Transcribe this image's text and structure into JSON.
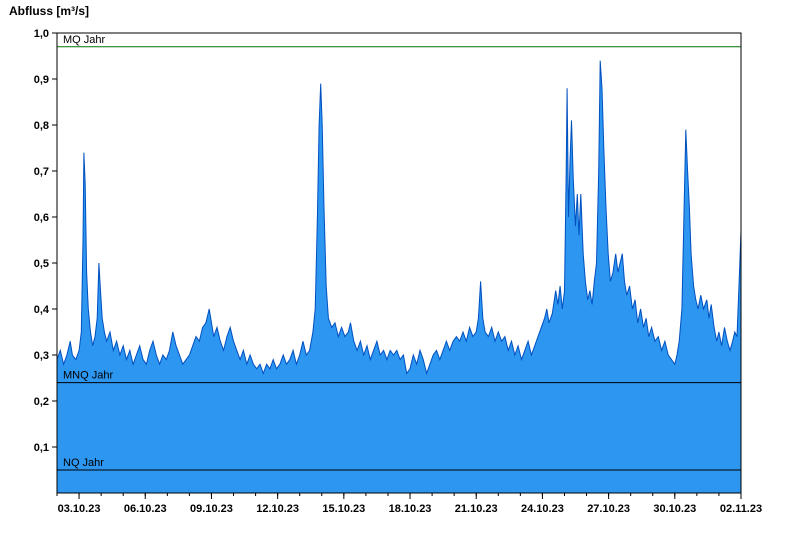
{
  "chart_data": {
    "type": "area",
    "title": "Abfluss [m³/s]",
    "ylabel": "Abfluss [m³/s]",
    "xlabel": "",
    "ylim": [
      0,
      1.0
    ],
    "xlim": [
      0,
      31
    ],
    "grid": false,
    "legend": "none",
    "colors": {
      "fill": "#2D96F0",
      "stroke": "#0050C0",
      "axis": "#000000"
    },
    "y_ticks": [
      {
        "value": 0.1,
        "label": "0,1"
      },
      {
        "value": 0.2,
        "label": "0,2"
      },
      {
        "value": 0.3,
        "label": "0,3"
      },
      {
        "value": 0.4,
        "label": "0,4"
      },
      {
        "value": 0.5,
        "label": "0,5"
      },
      {
        "value": 0.6,
        "label": "0,6"
      },
      {
        "value": 0.7,
        "label": "0,7"
      },
      {
        "value": 0.8,
        "label": "0,8"
      },
      {
        "value": 0.9,
        "label": "0,9"
      },
      {
        "value": 1.0,
        "label": "1,0"
      }
    ],
    "x_ticks": [
      {
        "day": 1,
        "label": "03.10.23"
      },
      {
        "day": 4,
        "label": "06.10.23"
      },
      {
        "day": 7,
        "label": "09.10.23"
      },
      {
        "day": 10,
        "label": "12.10.23"
      },
      {
        "day": 13,
        "label": "15.10.23"
      },
      {
        "day": 16,
        "label": "18.10.23"
      },
      {
        "day": 19,
        "label": "21.10.23"
      },
      {
        "day": 22,
        "label": "24.10.23"
      },
      {
        "day": 25,
        "label": "27.10.23"
      },
      {
        "day": 28,
        "label": "30.10.23"
      },
      {
        "day": 31,
        "label": "02.11.23"
      }
    ],
    "reference_lines": [
      {
        "label": "MQ Jahr",
        "value": 0.97,
        "color": "#007700"
      },
      {
        "label": "MNQ Jahr",
        "value": 0.24,
        "color": "#000000"
      },
      {
        "label": "NQ Jahr",
        "value": 0.05,
        "color": "#000000"
      }
    ],
    "series": [
      {
        "name": "Abfluss",
        "points": [
          [
            0.0,
            0.29
          ],
          [
            0.15,
            0.31
          ],
          [
            0.3,
            0.28
          ],
          [
            0.45,
            0.3
          ],
          [
            0.6,
            0.33
          ],
          [
            0.7,
            0.3
          ],
          [
            0.85,
            0.29
          ],
          [
            1.0,
            0.31
          ],
          [
            1.1,
            0.35
          ],
          [
            1.18,
            0.55
          ],
          [
            1.22,
            0.74
          ],
          [
            1.28,
            0.67
          ],
          [
            1.34,
            0.48
          ],
          [
            1.42,
            0.4
          ],
          [
            1.52,
            0.35
          ],
          [
            1.62,
            0.32
          ],
          [
            1.72,
            0.34
          ],
          [
            1.82,
            0.38
          ],
          [
            1.9,
            0.5
          ],
          [
            1.97,
            0.44
          ],
          [
            2.05,
            0.38
          ],
          [
            2.15,
            0.35
          ],
          [
            2.25,
            0.33
          ],
          [
            2.4,
            0.35
          ],
          [
            2.55,
            0.31
          ],
          [
            2.7,
            0.33
          ],
          [
            2.85,
            0.3
          ],
          [
            3.0,
            0.32
          ],
          [
            3.15,
            0.29
          ],
          [
            3.3,
            0.31
          ],
          [
            3.45,
            0.28
          ],
          [
            3.6,
            0.3
          ],
          [
            3.75,
            0.32
          ],
          [
            3.9,
            0.29
          ],
          [
            4.05,
            0.28
          ],
          [
            4.2,
            0.31
          ],
          [
            4.35,
            0.33
          ],
          [
            4.5,
            0.3
          ],
          [
            4.65,
            0.28
          ],
          [
            4.8,
            0.3
          ],
          [
            4.95,
            0.29
          ],
          [
            5.1,
            0.31
          ],
          [
            5.25,
            0.35
          ],
          [
            5.4,
            0.32
          ],
          [
            5.55,
            0.3
          ],
          [
            5.7,
            0.28
          ],
          [
            5.85,
            0.29
          ],
          [
            6.0,
            0.3
          ],
          [
            6.15,
            0.32
          ],
          [
            6.3,
            0.34
          ],
          [
            6.45,
            0.33
          ],
          [
            6.6,
            0.36
          ],
          [
            6.75,
            0.37
          ],
          [
            6.9,
            0.4
          ],
          [
            7.0,
            0.37
          ],
          [
            7.1,
            0.34
          ],
          [
            7.25,
            0.36
          ],
          [
            7.4,
            0.33
          ],
          [
            7.55,
            0.31
          ],
          [
            7.7,
            0.34
          ],
          [
            7.85,
            0.36
          ],
          [
            8.0,
            0.33
          ],
          [
            8.15,
            0.31
          ],
          [
            8.3,
            0.29
          ],
          [
            8.45,
            0.31
          ],
          [
            8.6,
            0.28
          ],
          [
            8.75,
            0.3
          ],
          [
            8.9,
            0.28
          ],
          [
            9.05,
            0.27
          ],
          [
            9.2,
            0.28
          ],
          [
            9.35,
            0.26
          ],
          [
            9.5,
            0.28
          ],
          [
            9.65,
            0.27
          ],
          [
            9.8,
            0.29
          ],
          [
            9.95,
            0.27
          ],
          [
            10.1,
            0.28
          ],
          [
            10.25,
            0.3
          ],
          [
            10.4,
            0.28
          ],
          [
            10.55,
            0.29
          ],
          [
            10.7,
            0.31
          ],
          [
            10.85,
            0.28
          ],
          [
            11.0,
            0.3
          ],
          [
            11.15,
            0.33
          ],
          [
            11.3,
            0.3
          ],
          [
            11.45,
            0.31
          ],
          [
            11.6,
            0.35
          ],
          [
            11.7,
            0.4
          ],
          [
            11.8,
            0.6
          ],
          [
            11.88,
            0.8
          ],
          [
            11.95,
            0.89
          ],
          [
            12.02,
            0.8
          ],
          [
            12.1,
            0.62
          ],
          [
            12.2,
            0.45
          ],
          [
            12.3,
            0.38
          ],
          [
            12.45,
            0.36
          ],
          [
            12.6,
            0.37
          ],
          [
            12.75,
            0.34
          ],
          [
            12.9,
            0.36
          ],
          [
            13.05,
            0.34
          ],
          [
            13.2,
            0.35
          ],
          [
            13.3,
            0.37
          ],
          [
            13.45,
            0.33
          ],
          [
            13.6,
            0.31
          ],
          [
            13.75,
            0.33
          ],
          [
            13.9,
            0.3
          ],
          [
            14.05,
            0.32
          ],
          [
            14.2,
            0.29
          ],
          [
            14.35,
            0.31
          ],
          [
            14.5,
            0.33
          ],
          [
            14.65,
            0.3
          ],
          [
            14.8,
            0.31
          ],
          [
            14.95,
            0.29
          ],
          [
            15.1,
            0.31
          ],
          [
            15.25,
            0.3
          ],
          [
            15.4,
            0.31
          ],
          [
            15.55,
            0.29
          ],
          [
            15.7,
            0.3
          ],
          [
            15.85,
            0.26
          ],
          [
            16.0,
            0.27
          ],
          [
            16.15,
            0.3
          ],
          [
            16.3,
            0.28
          ],
          [
            16.45,
            0.31
          ],
          [
            16.6,
            0.29
          ],
          [
            16.75,
            0.26
          ],
          [
            16.9,
            0.28
          ],
          [
            17.05,
            0.3
          ],
          [
            17.2,
            0.31
          ],
          [
            17.35,
            0.29
          ],
          [
            17.5,
            0.31
          ],
          [
            17.65,
            0.33
          ],
          [
            17.8,
            0.31
          ],
          [
            17.95,
            0.33
          ],
          [
            18.1,
            0.34
          ],
          [
            18.25,
            0.33
          ],
          [
            18.4,
            0.35
          ],
          [
            18.55,
            0.33
          ],
          [
            18.7,
            0.36
          ],
          [
            18.85,
            0.34
          ],
          [
            19.0,
            0.35
          ],
          [
            19.1,
            0.38
          ],
          [
            19.2,
            0.46
          ],
          [
            19.3,
            0.38
          ],
          [
            19.4,
            0.35
          ],
          [
            19.55,
            0.34
          ],
          [
            19.7,
            0.36
          ],
          [
            19.85,
            0.33
          ],
          [
            20.0,
            0.35
          ],
          [
            20.15,
            0.33
          ],
          [
            20.3,
            0.34
          ],
          [
            20.45,
            0.31
          ],
          [
            20.6,
            0.33
          ],
          [
            20.75,
            0.3
          ],
          [
            20.9,
            0.32
          ],
          [
            21.05,
            0.29
          ],
          [
            21.2,
            0.31
          ],
          [
            21.35,
            0.33
          ],
          [
            21.5,
            0.3
          ],
          [
            21.65,
            0.32
          ],
          [
            21.8,
            0.34
          ],
          [
            21.95,
            0.36
          ],
          [
            22.1,
            0.38
          ],
          [
            22.2,
            0.4
          ],
          [
            22.3,
            0.37
          ],
          [
            22.45,
            0.39
          ],
          [
            22.6,
            0.44
          ],
          [
            22.7,
            0.41
          ],
          [
            22.8,
            0.45
          ],
          [
            22.9,
            0.4
          ],
          [
            23.0,
            0.44
          ],
          [
            23.08,
            0.7
          ],
          [
            23.12,
            0.88
          ],
          [
            23.18,
            0.6
          ],
          [
            23.25,
            0.72
          ],
          [
            23.32,
            0.81
          ],
          [
            23.4,
            0.68
          ],
          [
            23.5,
            0.58
          ],
          [
            23.58,
            0.65
          ],
          [
            23.66,
            0.56
          ],
          [
            23.74,
            0.65
          ],
          [
            23.85,
            0.52
          ],
          [
            23.95,
            0.46
          ],
          [
            24.05,
            0.42
          ],
          [
            24.15,
            0.44
          ],
          [
            24.25,
            0.41
          ],
          [
            24.35,
            0.46
          ],
          [
            24.45,
            0.5
          ],
          [
            24.55,
            0.7
          ],
          [
            24.62,
            0.94
          ],
          [
            24.7,
            0.88
          ],
          [
            24.78,
            0.75
          ],
          [
            24.88,
            0.62
          ],
          [
            24.98,
            0.52
          ],
          [
            25.08,
            0.46
          ],
          [
            25.2,
            0.48
          ],
          [
            25.32,
            0.52
          ],
          [
            25.42,
            0.48
          ],
          [
            25.52,
            0.5
          ],
          [
            25.62,
            0.52
          ],
          [
            25.72,
            0.46
          ],
          [
            25.82,
            0.43
          ],
          [
            25.95,
            0.45
          ],
          [
            26.08,
            0.4
          ],
          [
            26.2,
            0.42
          ],
          [
            26.32,
            0.37
          ],
          [
            26.45,
            0.4
          ],
          [
            26.58,
            0.36
          ],
          [
            26.7,
            0.38
          ],
          [
            26.82,
            0.34
          ],
          [
            26.95,
            0.36
          ],
          [
            27.1,
            0.33
          ],
          [
            27.25,
            0.34
          ],
          [
            27.4,
            0.31
          ],
          [
            27.55,
            0.33
          ],
          [
            27.7,
            0.3
          ],
          [
            27.85,
            0.29
          ],
          [
            28.0,
            0.28
          ],
          [
            28.1,
            0.3
          ],
          [
            28.2,
            0.33
          ],
          [
            28.32,
            0.4
          ],
          [
            28.42,
            0.62
          ],
          [
            28.5,
            0.79
          ],
          [
            28.58,
            0.7
          ],
          [
            28.66,
            0.62
          ],
          [
            28.74,
            0.52
          ],
          [
            28.85,
            0.45
          ],
          [
            28.95,
            0.42
          ],
          [
            29.05,
            0.4
          ],
          [
            29.18,
            0.43
          ],
          [
            29.3,
            0.4
          ],
          [
            29.45,
            0.42
          ],
          [
            29.55,
            0.38
          ],
          [
            29.65,
            0.41
          ],
          [
            29.78,
            0.36
          ],
          [
            29.9,
            0.33
          ],
          [
            30.0,
            0.35
          ],
          [
            30.12,
            0.32
          ],
          [
            30.25,
            0.36
          ],
          [
            30.38,
            0.33
          ],
          [
            30.5,
            0.31
          ],
          [
            30.62,
            0.33
          ],
          [
            30.72,
            0.35
          ],
          [
            30.82,
            0.34
          ],
          [
            30.9,
            0.44
          ],
          [
            31.0,
            0.57
          ]
        ]
      }
    ]
  }
}
